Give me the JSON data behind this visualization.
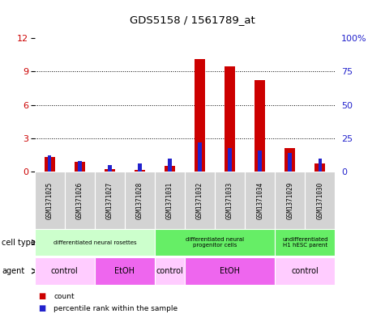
{
  "title": "GDS5158 / 1561789_at",
  "samples": [
    "GSM1371025",
    "GSM1371026",
    "GSM1371027",
    "GSM1371028",
    "GSM1371031",
    "GSM1371032",
    "GSM1371033",
    "GSM1371034",
    "GSM1371029",
    "GSM1371030"
  ],
  "counts": [
    1.3,
    0.9,
    0.25,
    0.15,
    0.55,
    10.1,
    9.5,
    8.2,
    2.1,
    0.75
  ],
  "percentile_ranks_pct": [
    12,
    8,
    5,
    6,
    10,
    22,
    18,
    16,
    14,
    10
  ],
  "ylim_left": [
    0,
    12
  ],
  "ylim_right": [
    0,
    100
  ],
  "yticks_left": [
    0,
    3,
    6,
    9,
    12
  ],
  "yticks_right": [
    0,
    25,
    50,
    75,
    100
  ],
  "ytick_labels_left": [
    "0",
    "3",
    "6",
    "9",
    "12"
  ],
  "ytick_labels_right": [
    "0",
    "25",
    "50",
    "75",
    "100%"
  ],
  "bar_color": "#cc0000",
  "percentile_color": "#2222cc",
  "cell_type_groups": [
    {
      "label": "differentiated neural rosettes",
      "start": 0,
      "end": 4,
      "color": "#ccffcc"
    },
    {
      "label": "differentiated neural\nprogenitor cells",
      "start": 4,
      "end": 8,
      "color": "#66ee66"
    },
    {
      "label": "undifferentiated\nH1 hESC parent",
      "start": 8,
      "end": 10,
      "color": "#66ee66"
    }
  ],
  "agent_groups": [
    {
      "label": "control",
      "start": 0,
      "end": 2,
      "color": "#ffccff"
    },
    {
      "label": "EtOH",
      "start": 2,
      "end": 4,
      "color": "#ee66ee"
    },
    {
      "label": "control",
      "start": 4,
      "end": 5,
      "color": "#ffccff"
    },
    {
      "label": "EtOH",
      "start": 5,
      "end": 8,
      "color": "#ee66ee"
    },
    {
      "label": "control",
      "start": 8,
      "end": 10,
      "color": "#ffccff"
    }
  ],
  "cell_type_label": "cell type",
  "agent_label": "agent",
  "legend_count_label": "count",
  "legend_percentile_label": "percentile rank within the sample",
  "background_color": "#ffffff",
  "bar_color_red": "#cc0000",
  "bar_color_blue": "#2222cc"
}
